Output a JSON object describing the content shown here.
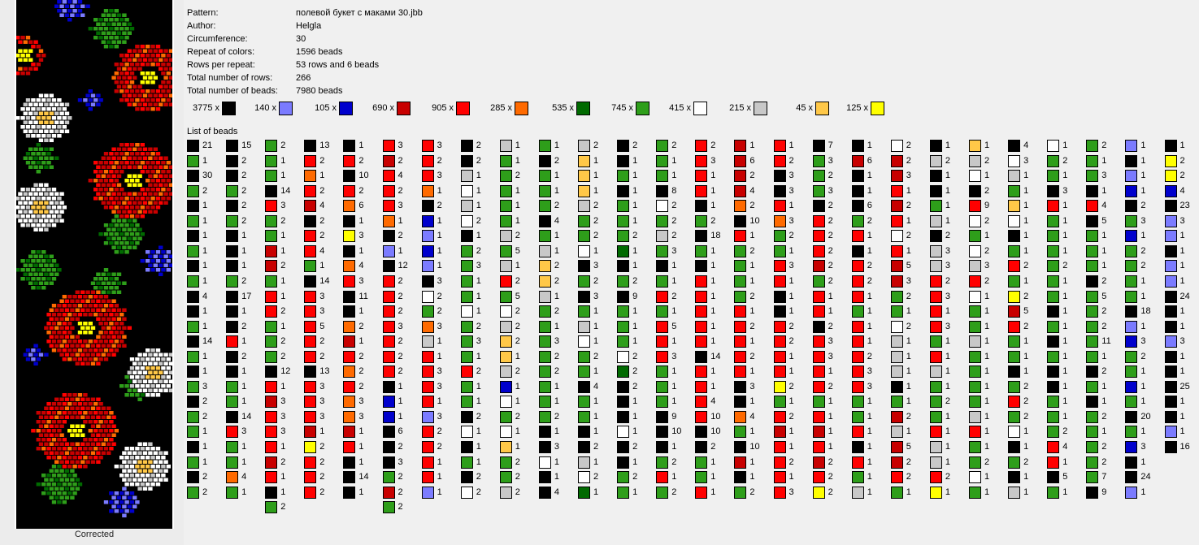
{
  "info": {
    "pattern_label": "Pattern:",
    "pattern_value": "полевой букет с маками 30.jbb",
    "author_label": "Author:",
    "author_value": "Helgla",
    "circumference_label": "Circumference:",
    "circumference_value": "30",
    "repeat_label": "Repeat of colors:",
    "repeat_value": "1596 beads",
    "rows_repeat_label": "Rows per repeat:",
    "rows_repeat_value": "53 rows and 6 beads",
    "total_rows_label": "Total number of rows:",
    "total_rows_value": "266",
    "total_beads_label": "Total number of beads:",
    "total_beads_value": "7980 beads"
  },
  "palette": {
    "k": "#000000",
    "p": "#7b7bff",
    "b": "#0000cc",
    "r": "#c80000",
    "R": "#ff0000",
    "o": "#ff6a00",
    "g": "#006a00",
    "G": "#2e9e1a",
    "w": "#ffffff",
    "s": "#c8c8c8",
    "y": "#ffc848",
    "Y": "#ffff00"
  },
  "color_summary": [
    {
      "count": "3775 x",
      "color": "k"
    },
    {
      "count": "140 x",
      "color": "p"
    },
    {
      "count": "105 x",
      "color": "b"
    },
    {
      "count": "690 x",
      "color": "r"
    },
    {
      "count": "905 x",
      "color": "R"
    },
    {
      "count": "285 x",
      "color": "o"
    },
    {
      "count": "535 x",
      "color": "g"
    },
    {
      "count": "745 x",
      "color": "G"
    },
    {
      "count": "415 x",
      "color": "w"
    },
    {
      "count": "215 x",
      "color": "s"
    },
    {
      "count": "45 x",
      "color": "y"
    },
    {
      "count": "125 x",
      "color": "Y"
    }
  ],
  "list_label": "List of beads",
  "bead_columns": [
    "k21 G1 k30 G2 k1 G1 k1 G1 k1 G1 k4 k1 G1 k14 G1 k1 G3 k2 G2 G1 k1 G1 k2 G2",
    "k15 k2 k2 G2 k2 G2 k1 k1 k1 G2 k17 k1 k2 R1 k2 k1 G1 G1 k14 R3 G1 G1 o4 G1",
    "G2 G1 G1 k14 R3 G2 G1 r1 r2 G1 R1 R2 G1 G2 G2 k12 R1 r3 R3 R3 R1 r2 R1 k1 G2",
    "k13 R2 o1 R2 r4 k2 R2 R4 G1 k14 R3 R3 R5 R2 R2 k13 R3 R3 R3 r1 Y2 R2 R2 R2",
    "k1 R2 k10 R2 o6 k1 Y3 k1 o4 R3 k11 k1 o2 r1 R2 o2 R2 o3 o3 r1 R1 k1 k14 k1",
    "R3 r2 R4 R2 R3 o1 k2 p1 k12 R2 R2 R2 R3 R2 R2 R2 k1 b1 b1 k6 k2 k3 G2 r2 G2",
    "R3 R2 R3 o1 k2 b1 p1 b1 p1 k3 w2 G2 o3 s1 R1 R3 R3 R1 p3 R2 R2 R1 R1 p1",
    "k2 k2 s1 w1 s1 w2 k1 G2 G3 G1 G1 w1 G2 G3 G1 R2 G1 G1 k2 w1 k1 G1 k2 w2",
    "s1 G1 G2 G1 G1 G1 s2 G5 s1 R2 G5 w2 s2 y2 y1 s2 b1 w1 G2 w1 y1 G2 G2 s2",
    "G1 k2 G1 G1 G2 k4 G1 s1 y2 y2 s1 G2 G1 G3 G2 G2 G1 G1 G2 k1 k3 w1 k1 k4",
    "s2 y1 y1 y1 s2 G2 G2 w1 k3 G2 k3 G1 s1 w1 G2 G1 k4 G1 G1 k1 k2 s1 w2 g1",
    "k2 k1 G1 k1 G1 G1 G2 g1 k1 G2 k9 G1 G1 G1 w2 g2 k2 k1 k1 w1 k2 k1 G2 G1",
    "G2 G1 G1 k8 w2 G2 s2 G3 k1 G1 R2 G1 R5 R1 R3 G1 G1 G1 k9 k10 k1 G2 R1 G2",
    "R2 R3 R1 R1 k1 G2 k18 G1 k1 R1 R1 R1 R1 R1 k14 R1 R1 R4 R10 k10 k2 G1 G1 R1",
    "r1 r6 r2 r4 o2 k10 R1 G2 G1 G1 G2 R1 R2 R1 R2 R1 k3 k1 o4 G1 k10 r1 k1 G2",
    "R1 R2 k3 k3 R1 o3 G2 G1 R3 R1 k1 k1 R2 R2 R1 R1 Y2 G1 R2 r1 R1 R2 R1 R3",
    "k7 G3 G2 G3 k2 R2 R2 R2 r2 G2 R1 R1 k2 R3 R3 R1 R2 G1 R1 r1 R1 r2 R2 Y2",
    "k1 r6 k1 k1 k6 G2 R1 k1 R2 R2 R1 G1 R1 R1 R2 R3 R3 G1 G1 R1 k1 R1 G1 s1",
    "w2 r2 r3 R1 r2 R1 w2 R1 r5 r3 G2 G1 w2 s1 s1 s1 k1 G1 r2 s1 r5 r2 R2 G1",
    "k1 s2 k1 k1 G1 s1 k2 s3 s3 R2 R3 R1 R3 G1 R1 s1 G1 G2 G1 R1 s1 s1 R2 Y1",
    "y1 s2 w1 k2 R9 w2 G1 w2 s3 R2 w1 G1 G1 s1 G1 G1 G1 G1 s1 R1 G1 G2 w1 G1",
    "k4 w3 s1 G1 y1 w1 k1 G1 R2 G1 Y2 r5 R2 G1 G1 k1 G2 R2 G2 w1 k1 G2 k1 s1",
    "w1 G2 G1 k3 R1 G1 G1 G1 G2 G1 G1 k1 G1 k1 G1 k1 k1 G1 G1 G2 R4 R1 k5 G1",
    "G2 G1 G3 k1 R4 k5 G1 G1 G1 k2 G5 G2 G2 G11 G1 k2 G1 k1 G2 G1 G2 G2 G7 k9",
    "p1 k1 p1 b1 k2 G3 b1 G2 G2 G1 G1 k18 p1 b3 G2 G1 b1 G1 k20 G1 b3 k1 k24 p1",
    "k1 Y2 Y2 b4 k23 p3 p1 k1 p1 p1 k24 k1 k1 p3 k1 k1 k25 k1 k1 p1 k16"
  ]
}
